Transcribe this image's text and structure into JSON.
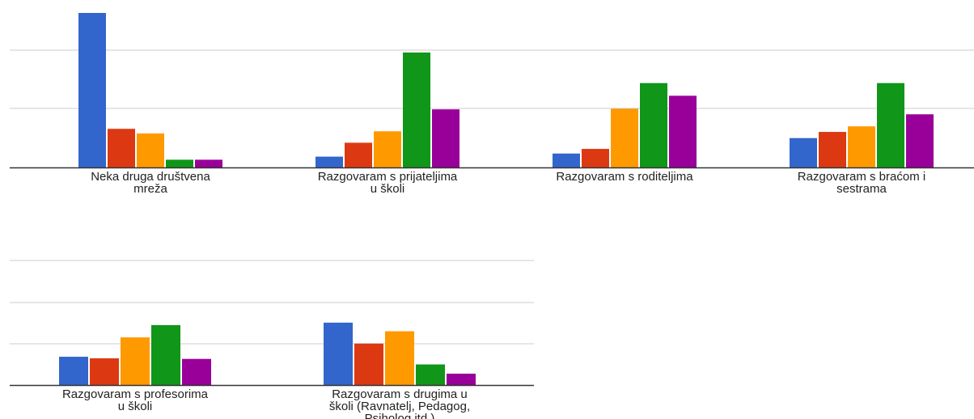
{
  "colors": {
    "series": [
      "#3366cc",
      "#dc3912",
      "#ff9900",
      "#109618",
      "#990099"
    ],
    "gridline": "#cccccc",
    "baseline": "#333333",
    "label_text": "#222222"
  },
  "chart_data": [
    {
      "type": "bar",
      "grid": true,
      "legend": "none",
      "ylim": [
        0,
        50
      ],
      "categories": [
        [
          "Neka druga društvena",
          "mreža"
        ],
        [
          "Razgovaram s prijateljima",
          "u školi"
        ],
        [
          "Razgovaram s roditeljima"
        ],
        [
          "Razgovaram s braćom i",
          "sestrama"
        ]
      ],
      "series": [
        {
          "values": [
            50,
            3.5,
            4.5,
            9.5
          ]
        },
        {
          "values": [
            12.5,
            8,
            6,
            11.5
          ]
        },
        {
          "values": [
            11,
            11.7,
            19,
            13.3
          ]
        },
        {
          "values": [
            2.5,
            37.2,
            27.3,
            27.3
          ]
        },
        {
          "values": [
            2.5,
            18.8,
            23.2,
            17.2
          ]
        }
      ]
    },
    {
      "type": "bar",
      "grid": true,
      "legend": "none",
      "ylim": [
        0,
        50
      ],
      "categories": [
        [
          "Razgovaram s profesorima",
          "u školi"
        ],
        [
          "Razgovaram s drugima u",
          "školi (Ravnatelj, Pedagog,",
          "Psiholog itd.)"
        ]
      ],
      "series": [
        {
          "values": [
            9.2,
            20.3
          ]
        },
        {
          "values": [
            8.7,
            13.5
          ]
        },
        {
          "values": [
            15.5,
            17.5
          ]
        },
        {
          "values": [
            19.5,
            6.7
          ]
        },
        {
          "values": [
            8.5,
            3.7
          ]
        }
      ]
    }
  ]
}
